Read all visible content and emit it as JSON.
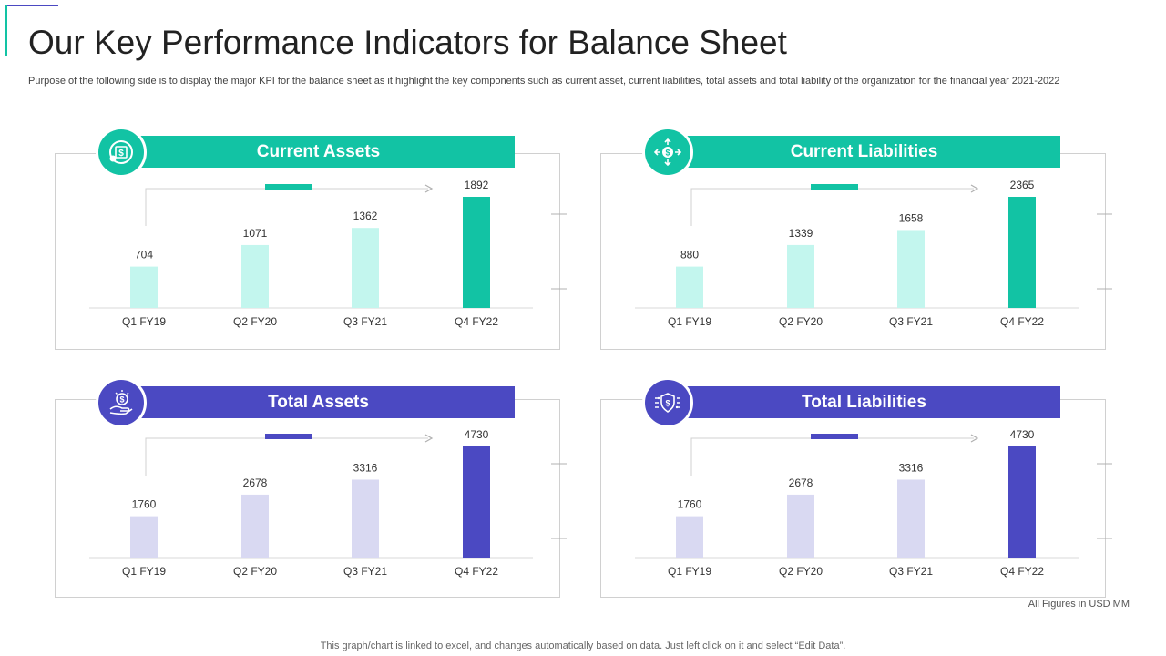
{
  "page": {
    "title": "Our Key Performance Indicators for Balance Sheet",
    "subtitle": "Purpose of the following side is to display the major KPI for the balance sheet as it highlight the key components such as current asset, current liabilities, total assets and total liability of the organization for the financial year 2021-2022",
    "figures_note": "All Figures in USD MM",
    "footer": "This graph/chart is linked to excel,  and changes automatically based on data. Just left click on it and select “Edit Data”."
  },
  "colors": {
    "teal": "#12c3a4",
    "teal_light": "#c3f6ee",
    "indigo": "#4b49c2",
    "indigo_light": "#d9d9f2"
  },
  "chart_data": [
    {
      "type": "bar",
      "title": "Current Assets",
      "icon": "money-globe-icon",
      "theme": "teal",
      "categories": [
        "Q1 FY19",
        "Q2 FY20",
        "Q3 FY21",
        "Q4 FY22"
      ],
      "values": [
        704,
        1071,
        1362,
        1892
      ],
      "ylim": [
        0,
        1892
      ]
    },
    {
      "type": "bar",
      "title": "Current Liabilities",
      "icon": "dollar-arrows-icon",
      "theme": "teal",
      "categories": [
        "Q1 FY19",
        "Q2 FY20",
        "Q3 FY21",
        "Q4 FY22"
      ],
      "values": [
        880,
        1339,
        1658,
        2365
      ],
      "ylim": [
        0,
        2365
      ]
    },
    {
      "type": "bar",
      "title": "Total Assets",
      "icon": "hand-coin-icon",
      "theme": "indigo",
      "categories": [
        "Q1 FY19",
        "Q2 FY20",
        "Q3 FY21",
        "Q4 FY22"
      ],
      "values": [
        1760,
        2678,
        3316,
        4730
      ],
      "ylim": [
        0,
        4730
      ]
    },
    {
      "type": "bar",
      "title": "Total Liabilities",
      "icon": "shield-dollar-icon",
      "theme": "indigo",
      "categories": [
        "Q1 FY19",
        "Q2 FY20",
        "Q3 FY21",
        "Q4 FY22"
      ],
      "values": [
        1760,
        2678,
        3316,
        4730
      ],
      "ylim": [
        0,
        4730
      ]
    }
  ]
}
